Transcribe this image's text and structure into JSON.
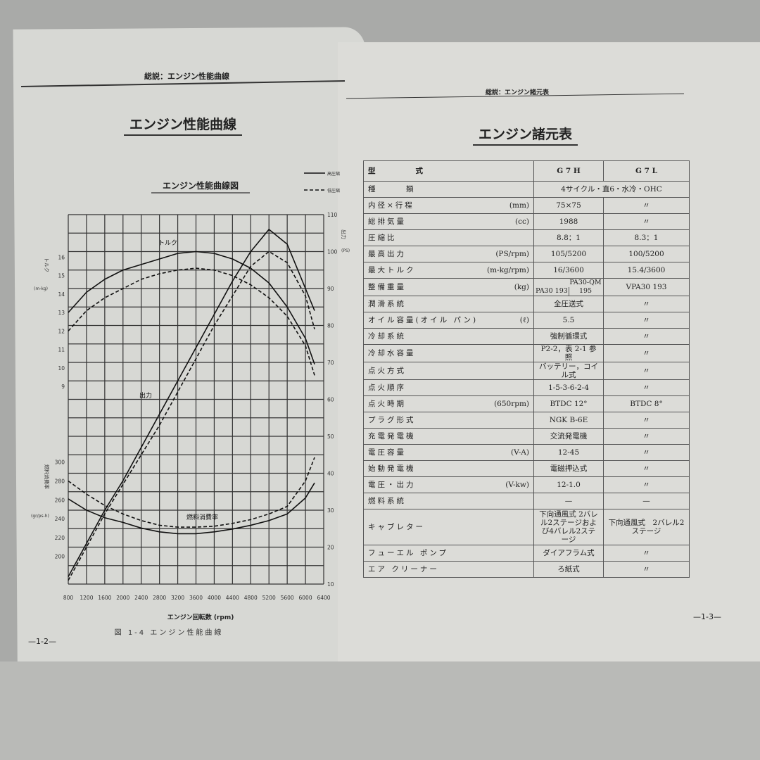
{
  "left_page": {
    "running_header": "総説：エンジン性能曲線",
    "title": "エンジン性能曲線",
    "page_number": "—1-2—"
  },
  "right_page": {
    "running_header": "総説：エンジン諸元表",
    "title": "エンジン諸元表",
    "page_number": "—1-3—"
  },
  "chart_data": {
    "type": "line",
    "title": "エンジン性能曲線図",
    "caption": "図 1-4 エンジン性能曲線",
    "xlabel": "エンジン回転数 (rpm)",
    "x_ticks": [
      800,
      1200,
      1600,
      2000,
      2400,
      2800,
      3200,
      3600,
      4000,
      4400,
      4800,
      5200,
      5600,
      6000,
      6400
    ],
    "xlim": [
      800,
      6400
    ],
    "torque_axis": {
      "label": "トルク",
      "unit": "(m-kg)",
      "ticks": [
        9,
        10,
        11,
        12,
        13,
        14,
        15,
        16
      ]
    },
    "fuel_axis": {
      "label": "燃料消費率",
      "unit": "(gr/ps-h)",
      "ticks": [
        200,
        220,
        240,
        260,
        280,
        300
      ]
    },
    "power_axis": {
      "label": "出力",
      "unit": "(PS)",
      "ticks": [
        10,
        20,
        30,
        40,
        50,
        60,
        70,
        80,
        90,
        100,
        110
      ],
      "ylim": [
        10,
        110
      ]
    },
    "grid": true,
    "legend": {
      "placement": "top-right",
      "entries": [
        {
          "name": "高圧縮",
          "style": "solid"
        },
        {
          "name": "低圧縮",
          "style": "dashed"
        }
      ]
    },
    "curve_labels": {
      "torque": "トルク",
      "power": "出力",
      "fuel": "燃料消費率"
    },
    "x": [
      800,
      1200,
      1600,
      2000,
      2400,
      2800,
      3200,
      3600,
      4000,
      4400,
      4800,
      5200,
      5600,
      6000,
      6200
    ],
    "series": [
      {
        "name": "高圧縮",
        "quantity": "torque",
        "style": "solid",
        "values": [
          13,
          14.1,
          14.8,
          15.3,
          15.6,
          15.9,
          16.2,
          16.3,
          16.2,
          15.9,
          15.4,
          14.6,
          13.3,
          11.6,
          10.2
        ]
      },
      {
        "name": "低圧縮",
        "quantity": "torque",
        "style": "dashed",
        "values": [
          12,
          13.1,
          13.8,
          14.3,
          14.8,
          15.1,
          15.3,
          15.4,
          15.3,
          15.0,
          14.5,
          13.8,
          12.8,
          11.2,
          9.6
        ]
      },
      {
        "name": "高圧縮",
        "quantity": "power",
        "style": "solid",
        "values": [
          12,
          21,
          30,
          38,
          47,
          56,
          65,
          74,
          83,
          92,
          100,
          106,
          102,
          90,
          84
        ]
      },
      {
        "name": "低圧縮",
        "quantity": "power",
        "style": "dashed",
        "values": [
          11,
          20,
          29,
          37,
          45,
          53,
          62,
          71,
          80,
          88,
          96,
          100,
          97,
          88,
          79
        ]
      },
      {
        "name": "高圧縮",
        "quantity": "fuel",
        "style": "solid",
        "values": [
          261,
          249,
          241,
          236,
          230,
          226,
          224,
          224,
          226,
          229,
          233,
          238,
          245,
          262,
          278
        ]
      },
      {
        "name": "低圧縮",
        "quantity": "fuel",
        "style": "dashed",
        "values": [
          280,
          266,
          254,
          245,
          238,
          233,
          231,
          231,
          232,
          235,
          239,
          245,
          253,
          280,
          305
        ]
      }
    ]
  },
  "spec_table": {
    "header": {
      "label": "型　　　　式",
      "g7h": "G 7 H",
      "g7l": "G 7 L"
    },
    "rows": [
      {
        "label": "種　　　類",
        "unit": "",
        "g7h": "4サイクル・直6・水冷・OHC",
        "span": true
      },
      {
        "label": "内径×行程",
        "unit": "(mm)",
        "g7h": "75×75",
        "g7l": "〃"
      },
      {
        "label": "総排気量",
        "unit": "(cc)",
        "g7h": "1988",
        "g7l": "〃"
      },
      {
        "label": "圧縮比",
        "unit": "",
        "g7h": "8.8：1",
        "g7l": "8.3：1"
      },
      {
        "label": "最高出力",
        "unit": "(PS/rpm)",
        "g7h": "105/5200",
        "g7l": "100/5200"
      },
      {
        "label": "最大トルク",
        "unit": "(m-kg/rpm)",
        "g7h": "16/3600",
        "g7l": "15.4/3600"
      },
      {
        "label": "整備重量",
        "unit": "(kg)",
        "g7h_split": [
          "PA30 193",
          "PA30-QM 195"
        ],
        "g7l": "VPA30 193"
      },
      {
        "label": "潤滑系統",
        "unit": "",
        "g7h": "全圧送式",
        "g7l": "〃"
      },
      {
        "label": "オイル容量(オイル パン)",
        "unit": "(ℓ)",
        "g7h": "5.5",
        "g7l": "〃"
      },
      {
        "label": "冷却系統",
        "unit": "",
        "g7h": "強制循環式",
        "g7l": "〃"
      },
      {
        "label": "冷却水容量",
        "unit": "",
        "g7h": "P2-2，表 2-1 参照",
        "g7l": "〃"
      },
      {
        "label": "点火方式",
        "unit": "",
        "g7h": "バッテリー，コイル式",
        "g7l": "〃"
      },
      {
        "label": "点火順序",
        "unit": "",
        "g7h": "1-5-3-6-2-4",
        "g7l": "〃"
      },
      {
        "label": "点火時期",
        "unit": "(650rpm)",
        "g7h": "BTDC 12°",
        "g7l": "BTDC 8°"
      },
      {
        "label": "プラグ形式",
        "unit": "",
        "g7h": "NGK B-6E",
        "g7l": "〃"
      },
      {
        "label": "充電発電機",
        "unit": "",
        "g7h": "交流発電機",
        "g7l": "〃"
      },
      {
        "label": "電圧容量",
        "unit": "(V-A)",
        "g7h": "12-45",
        "g7l": "〃"
      },
      {
        "label": "始動発電機",
        "unit": "",
        "g7h": "電磁押込式",
        "g7l": "〃"
      },
      {
        "label": "電圧・出力",
        "unit": "(V-kw)",
        "g7h": "12-1.0",
        "g7l": "〃"
      },
      {
        "label": "燃料系統",
        "unit": "",
        "g7h": "—",
        "g7l": "—"
      },
      {
        "label": "キャブレター",
        "unit": "",
        "g7h": "下向通風式 2バレル2ステージおよび4バレル2ステージ",
        "g7l": "下向通風式　2バレル2ステージ",
        "tall": true
      },
      {
        "label": "フューエル ポンプ",
        "unit": "",
        "g7h": "ダイアフラム式",
        "g7l": "〃"
      },
      {
        "label": "エア クリーナー",
        "unit": "",
        "g7h": "ろ紙式",
        "g7l": "〃"
      }
    ]
  }
}
